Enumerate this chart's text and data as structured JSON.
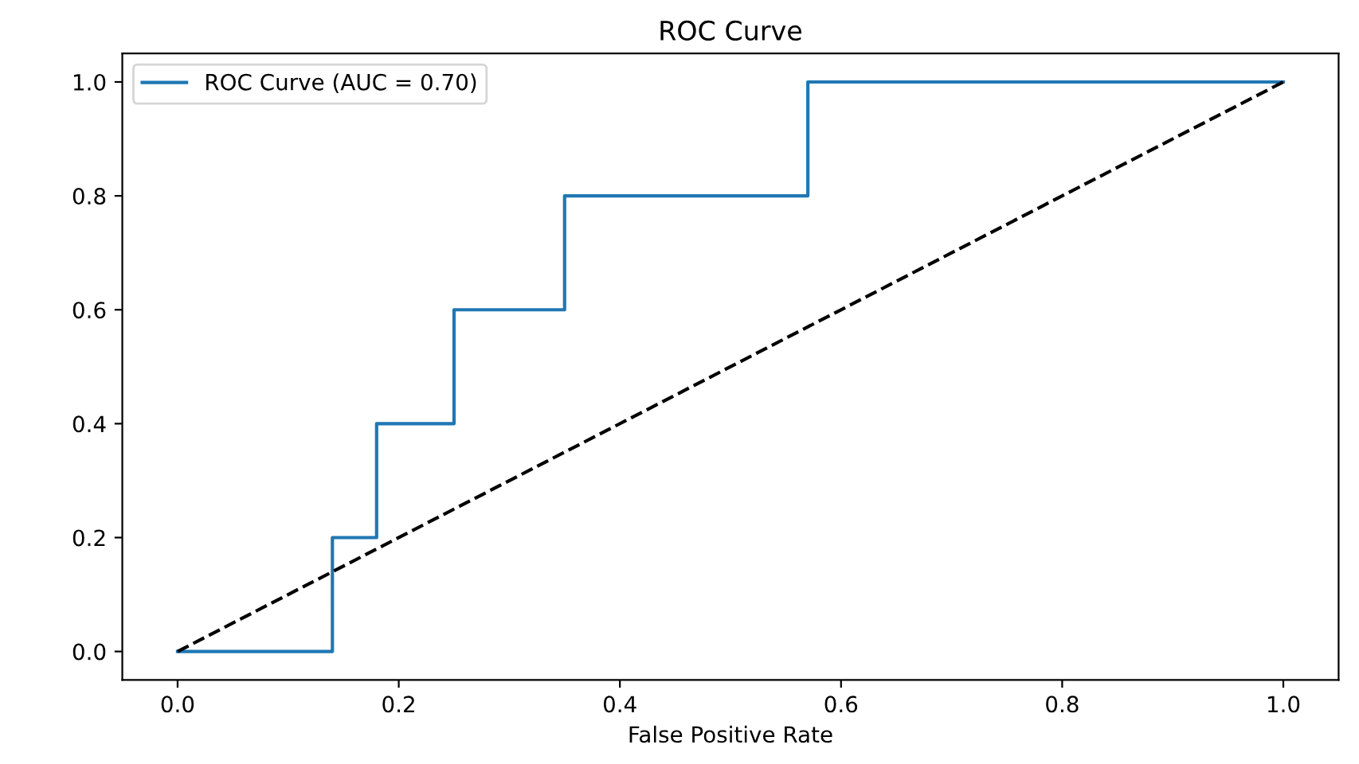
{
  "chart_data": {
    "type": "step",
    "title": "ROC Curve",
    "xlabel": "False Positive Rate",
    "series": [
      {
        "name": "ROC Curve (AUC = 0.70)",
        "color": "#1f77b4",
        "line_style": "solid",
        "x": [
          0,
          0.14,
          0.18,
          0.25,
          0.35,
          0.57,
          1.0
        ],
        "values": [
          0,
          0.2,
          0.4,
          0.6,
          0.8,
          1.0,
          1.0
        ]
      },
      {
        "type": "line",
        "color": "#000000",
        "line_style": "dashed",
        "x": [
          0,
          1
        ],
        "values": [
          0,
          1
        ]
      }
    ],
    "xlim": [
      -0.05,
      1.05
    ],
    "ylim": [
      -0.05,
      1.05
    ],
    "xticks": [
      {
        "value": 0,
        "label": "0.0"
      },
      0.2,
      0.4,
      0.6,
      0.8,
      {
        "value": 1,
        "label": "1.0"
      }
    ],
    "yticks": [
      {
        "value": 0,
        "label": "0.0"
      },
      0.2,
      0.4,
      0.6,
      0.8,
      {
        "value": 1,
        "label": "1.0"
      }
    ],
    "grid": false,
    "legend": "top left"
  }
}
